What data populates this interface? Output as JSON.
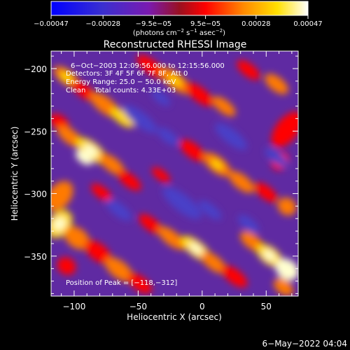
{
  "chart_data": {
    "type": "heatmap",
    "title": "Reconstructed RHESSI Image",
    "xlabel": "Heliocentric X (arcsec)",
    "ylabel": "Heliocentric Y (arcsec)",
    "xlim": [
      -118,
      75
    ],
    "ylim": [
      -382,
      -186
    ],
    "xticks": [
      -100,
      -50,
      0,
      50
    ],
    "xtick_labels": [
      "−100",
      "−50",
      "0",
      "50"
    ],
    "yticks": [
      -200,
      -250,
      -300,
      -350
    ],
    "ytick_labels": [
      "−200",
      "−250",
      "−300",
      "−350"
    ],
    "colorbar": {
      "range": [
        -0.00047,
        0.00047
      ],
      "tick_values": [
        -0.00047,
        -0.00028,
        -9.5e-05,
        9.5e-05,
        0.00028,
        0.00047
      ],
      "tick_labels": [
        "−0.00047",
        "−0.00028",
        "−9.5e−05",
        "9.5e−05",
        "0.00028",
        "0.00047"
      ],
      "unit_prefix": "(photons cm",
      "unit_sup1": "−2",
      "unit_mid": " s",
      "unit_sup2": "−1",
      "unit_after": " asec",
      "unit_sup3": "−2",
      "unit_suffix": ")"
    },
    "annotations": [
      "6−Oct−2003 12:09:56.000 to 12:15:56.000",
      "Detectors: 3F 4F 5F 6F 7F 8F, Att 0",
      "Energy Range: 25.0 − 50.0 keV",
      "Clean    Total counts: 4.33E+03"
    ],
    "peak_text": "Position of Peak = [−118,−312]",
    "peak": [
      -118,
      -312
    ],
    "grid": false,
    "colors": {
      "palette": [
        "#0000ff",
        "#4a3fc8",
        "#6e22b8",
        "#8a1cb0",
        "#ff0000",
        "#ff7a00",
        "#ffd800",
        "#ffffd0"
      ],
      "background": "#000000"
    }
  },
  "footer": {
    "timestamp": "6−May−2022 04:04"
  }
}
